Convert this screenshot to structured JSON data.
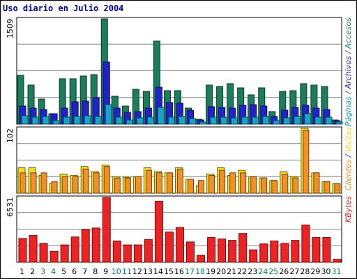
{
  "title": "Uso diario en Julio 2004",
  "panel_top": {
    "ymax_label": "1509",
    "legend": [
      {
        "text": "Páginas",
        "color": "#19a4c5"
      },
      {
        "text": " / ",
        "color": "#444444"
      },
      {
        "text": "Archivos",
        "color": "#2222cc"
      },
      {
        "text": " / ",
        "color": "#444444"
      },
      {
        "text": "Accesos",
        "color": "#1c7d5c"
      }
    ]
  },
  "panel_mid": {
    "ymax_label": "102",
    "legend": [
      {
        "text": "Clientes",
        "color": "#f39021"
      },
      {
        "text": " / ",
        "color": "#444444"
      },
      {
        "text": "Visitas",
        "color": "#f0e020"
      }
    ]
  },
  "panel_bot": {
    "ymax_label": "6531",
    "legend": [
      {
        "text": "KBytes",
        "color": "#ee2222"
      }
    ]
  },
  "chart_data": [
    {
      "type": "bar",
      "title": "Uso diario en Julio 2004",
      "categories": [
        "1",
        "2",
        "3",
        "4",
        "5",
        "6",
        "7",
        "8",
        "9",
        "10",
        "11",
        "12",
        "13",
        "14",
        "15",
        "16",
        "17",
        "18",
        "19",
        "20",
        "21",
        "22",
        "23",
        "24",
        "25",
        "26",
        "27",
        "28",
        "29",
        "30",
        "31"
      ],
      "weekend_days": [
        "3",
        "4",
        "10",
        "11",
        "17",
        "18",
        "24",
        "25",
        "31"
      ],
      "ylim": [
        0,
        1509
      ],
      "series": [
        {
          "name": "Accesos",
          "color": "#1c7d5c",
          "values": [
            700,
            560,
            360,
            150,
            650,
            650,
            690,
            710,
            1509,
            400,
            260,
            500,
            470,
            1190,
            480,
            480,
            230,
            70,
            560,
            540,
            580,
            520,
            420,
            520,
            180,
            470,
            480,
            580,
            560,
            540,
            60
          ]
        },
        {
          "name": "Archivos",
          "color": "#2222cc",
          "values": [
            260,
            230,
            210,
            150,
            230,
            320,
            330,
            380,
            890,
            230,
            170,
            180,
            230,
            530,
            310,
            300,
            200,
            60,
            250,
            240,
            230,
            270,
            280,
            260,
            110,
            200,
            240,
            270,
            230,
            210,
            50
          ]
        },
        {
          "name": "Páginas",
          "color": "#19a4c5",
          "values": [
            120,
            100,
            110,
            50,
            100,
            110,
            120,
            110,
            280,
            100,
            60,
            90,
            100,
            240,
            100,
            110,
            80,
            30,
            100,
            100,
            90,
            100,
            100,
            110,
            50,
            90,
            110,
            150,
            100,
            100,
            30
          ]
        }
      ]
    },
    {
      "type": "bar",
      "categories": [
        "1",
        "2",
        "3",
        "4",
        "5",
        "6",
        "7",
        "8",
        "9",
        "10",
        "11",
        "12",
        "13",
        "14",
        "15",
        "16",
        "17",
        "18",
        "19",
        "20",
        "21",
        "22",
        "23",
        "24",
        "25",
        "26",
        "27",
        "28",
        "29",
        "30",
        "31"
      ],
      "ylim": [
        0,
        102
      ],
      "series": [
        {
          "name": "Visitas",
          "color": "#f0e020",
          "values": [
            40,
            40,
            28,
            16,
            30,
            28,
            42,
            34,
            44,
            26,
            25,
            26,
            40,
            34,
            32,
            40,
            22,
            12,
            30,
            40,
            28,
            36,
            26,
            24,
            20,
            34,
            26,
            102,
            32,
            18,
            15
          ]
        },
        {
          "name": "Clientes",
          "color": "#f39021",
          "values": [
            32,
            32,
            32,
            18,
            26,
            26,
            38,
            32,
            42,
            24,
            24,
            26,
            36,
            32,
            32,
            38,
            22,
            20,
            28,
            36,
            32,
            32,
            26,
            24,
            20,
            30,
            24,
            99,
            32,
            18,
            15
          ]
        }
      ]
    },
    {
      "type": "bar",
      "categories": [
        "1",
        "2",
        "3",
        "4",
        "5",
        "6",
        "7",
        "8",
        "9",
        "10",
        "11",
        "12",
        "13",
        "14",
        "15",
        "16",
        "17",
        "18",
        "19",
        "20",
        "21",
        "22",
        "23",
        "24",
        "25",
        "26",
        "27",
        "28",
        "29",
        "30",
        "31"
      ],
      "ylim": [
        0,
        6531
      ],
      "series": [
        {
          "name": "KBytes",
          "color": "#ee2222",
          "values": [
            2400,
            2700,
            1900,
            1100,
            1750,
            2550,
            3300,
            3450,
            6531,
            2150,
            1750,
            1750,
            2300,
            6150,
            3050,
            3500,
            2050,
            700,
            2500,
            2350,
            2200,
            2900,
            1250,
            1850,
            2150,
            1900,
            2200,
            3750,
            2500,
            2500,
            300
          ]
        }
      ]
    }
  ]
}
